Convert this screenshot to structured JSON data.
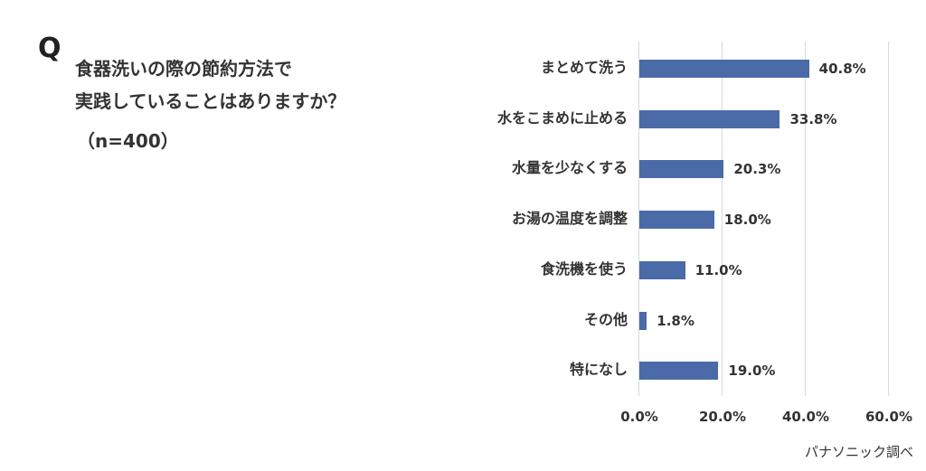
{
  "question": {
    "mark": "Q",
    "line1": "食器洗いの際の節約方法で",
    "line2": "実践していることはありますか？",
    "sample": "（n=400）"
  },
  "source": "パナソニック調べ",
  "chart_data": {
    "type": "bar",
    "orientation": "horizontal",
    "title": "食器洗いの際の節約方法で実践していることはありますか？（n=400）",
    "categories": [
      "まとめて洗う",
      "水をこまめに止める",
      "水量を少なくする",
      "お湯の温度を調整",
      "食洗機を使う",
      "その他",
      "特になし"
    ],
    "values": [
      40.8,
      33.8,
      20.3,
      18.0,
      11.0,
      1.8,
      19.0
    ],
    "value_labels": [
      "40.8%",
      "33.8%",
      "20.3%",
      "18.0%",
      "11.0%",
      "1.8%",
      "19.0%"
    ],
    "xlabel": "",
    "ylabel": "",
    "xlim": [
      0,
      60
    ],
    "x_ticks": [
      "0.0%",
      "20.0%",
      "40.0%",
      "60.0%"
    ],
    "grid": true,
    "legend": null,
    "bar_color": "#4a6aa8",
    "annotation": "パナソニック調べ"
  }
}
